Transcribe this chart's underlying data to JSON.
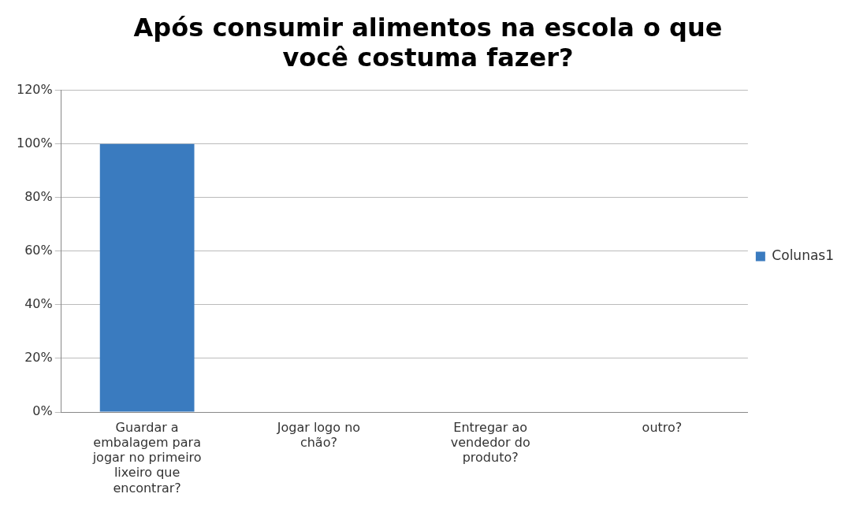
{
  "chart_data": {
    "type": "bar",
    "title": "Após consumir alimentos na escola o que você costuma fazer?",
    "categories": [
      "Guardar a embalagem para jogar no primeiro lixeiro que encontrar?",
      "Jogar logo no chão?",
      "Entregar ao vendedor do produto?",
      "outro?"
    ],
    "series": [
      {
        "name": "Colunas1",
        "color": "#3a7bbf",
        "values": [
          100,
          0,
          0,
          0
        ]
      }
    ],
    "ylim": [
      0,
      120
    ],
    "yticks": [
      {
        "value": 0,
        "label": "0%"
      },
      {
        "value": 20,
        "label": "20%"
      },
      {
        "value": 40,
        "label": "40%"
      },
      {
        "value": 60,
        "label": "60%"
      },
      {
        "value": 80,
        "label": "80%"
      },
      {
        "value": 100,
        "label": "100%"
      },
      {
        "value": 120,
        "label": "120%"
      }
    ],
    "grid": "y",
    "legend": "right"
  }
}
